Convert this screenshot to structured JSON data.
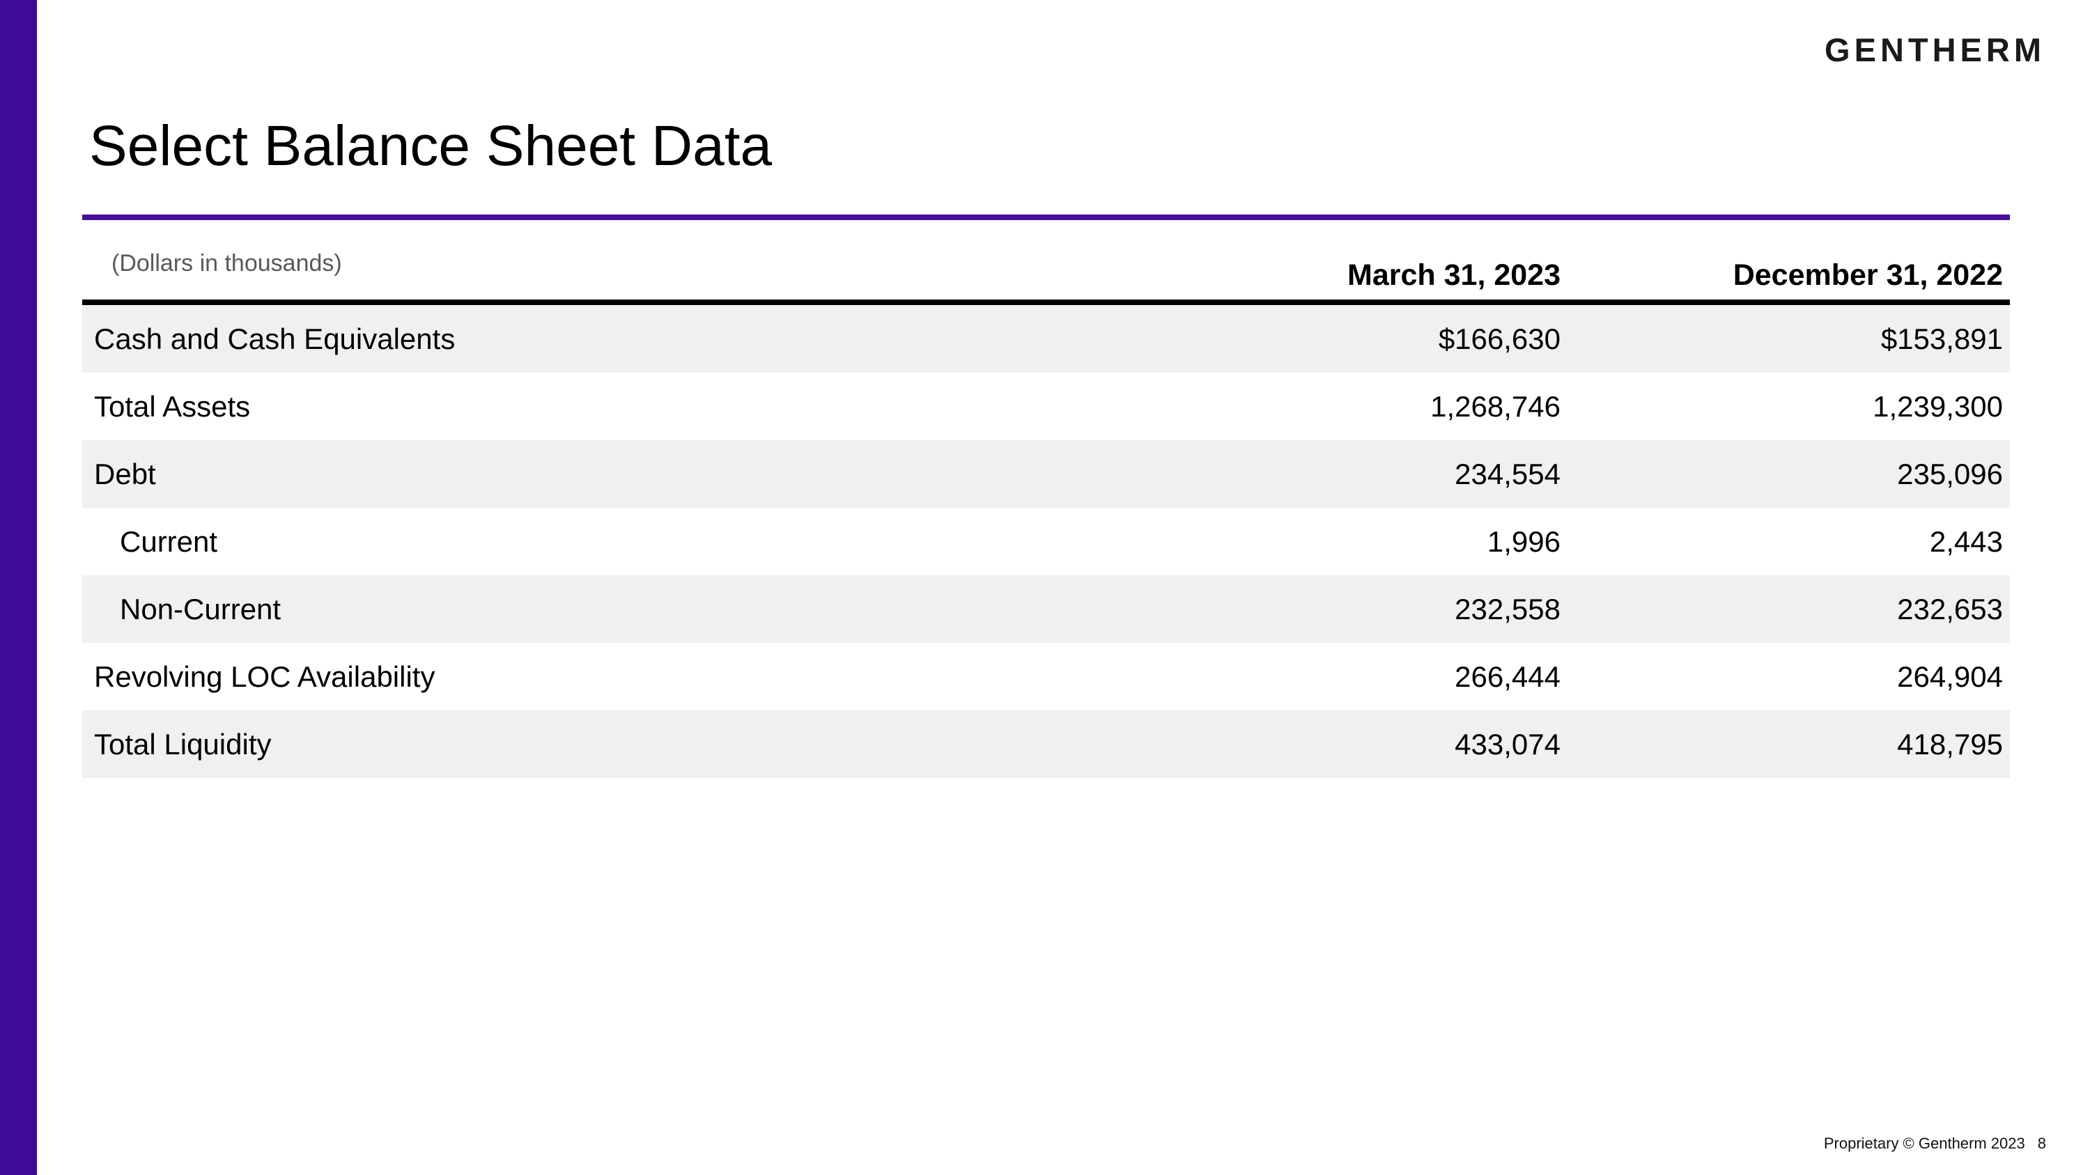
{
  "branding": {
    "logo_text": "GENTHERM",
    "accent_bar_color": "#3F0A96",
    "rule_color": "#4A0E9F",
    "row_stripe_color": "#F0F0F0"
  },
  "header": {
    "title": "Select Balance Sheet Data"
  },
  "table": {
    "units_note": "(Dollars in thousands)",
    "columns": [
      "March 31, 2023",
      "December 31, 2022"
    ],
    "rows": [
      {
        "label": "Cash and Cash Equivalents",
        "indent": false,
        "values": [
          "$166,630",
          "$153,891"
        ]
      },
      {
        "label": "Total Assets",
        "indent": false,
        "values": [
          "1,268,746",
          "1,239,300"
        ]
      },
      {
        "label": "Debt",
        "indent": false,
        "values": [
          "234,554",
          "235,096"
        ]
      },
      {
        "label": "Current",
        "indent": true,
        "values": [
          "1,996",
          "2,443"
        ]
      },
      {
        "label": "Non-Current",
        "indent": true,
        "values": [
          "232,558",
          "232,653"
        ]
      },
      {
        "label": "Revolving LOC Availability",
        "indent": false,
        "values": [
          "266,444",
          "264,904"
        ]
      },
      {
        "label": "Total Liquidity",
        "indent": false,
        "values": [
          "433,074",
          "418,795"
        ]
      }
    ]
  },
  "footer": {
    "proprietary_text": "Proprietary © Gentherm 2023",
    "page_number": "8"
  }
}
